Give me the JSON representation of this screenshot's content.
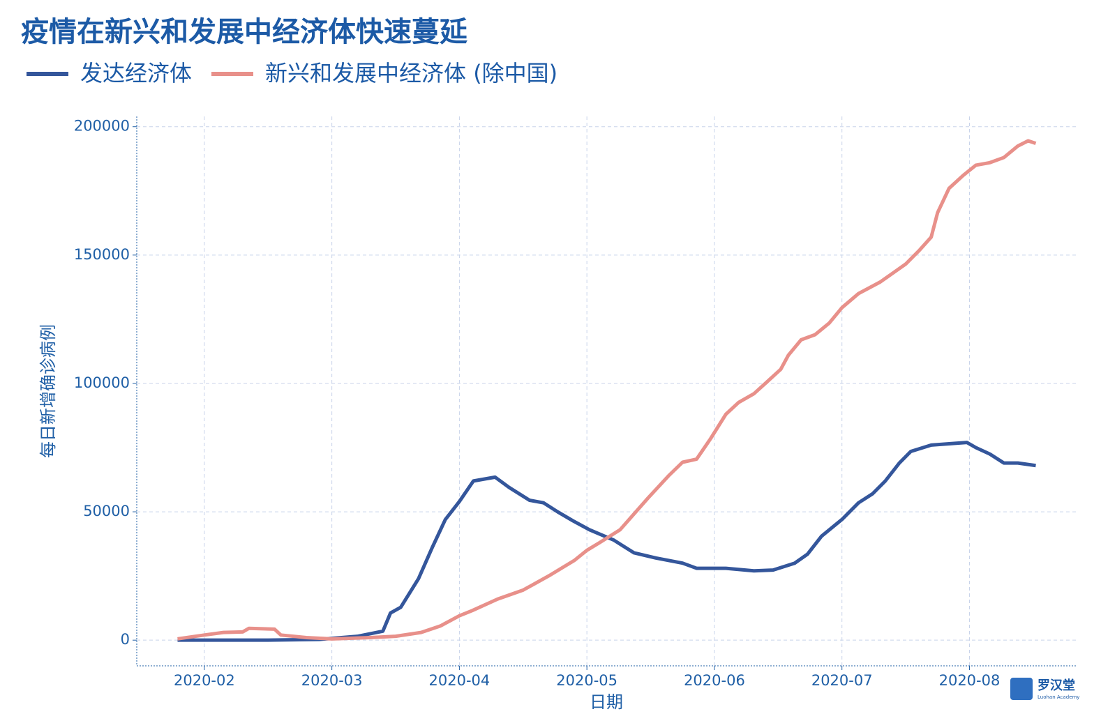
{
  "chart_data": {
    "type": "line",
    "title": "疫情在新兴和发展中经济体快速蔓延",
    "x_label": "日期",
    "y_label": "每日新增确诊病例",
    "xlim": [
      1.47,
      8.84
    ],
    "ylim": [
      -10000,
      204000
    ],
    "xticks": [
      {
        "value": 2,
        "label": "2020-02"
      },
      {
        "value": 3,
        "label": "2020-03"
      },
      {
        "value": 4,
        "label": "2020-04"
      },
      {
        "value": 5,
        "label": "2020-05"
      },
      {
        "value": 6,
        "label": "2020-06"
      },
      {
        "value": 7,
        "label": "2020-07"
      },
      {
        "value": 8,
        "label": "2020-08"
      }
    ],
    "yticks": [
      0,
      50000,
      100000,
      150000,
      200000
    ],
    "grid": true,
    "legend": "top-left",
    "series": [
      {
        "name": "发达经济体",
        "color": "#34569b",
        "x": [
          1.79,
          2.0,
          2.5,
          2.9,
          3.0,
          3.2,
          3.4,
          3.46,
          3.54,
          3.68,
          3.79,
          3.89,
          4.0,
          4.11,
          4.28,
          4.39,
          4.55,
          4.66,
          4.77,
          4.89,
          5.02,
          5.21,
          5.37,
          5.54,
          5.75,
          5.86,
          6.09,
          6.31,
          6.46,
          6.63,
          6.73,
          6.84,
          7.0,
          7.13,
          7.24,
          7.34,
          7.45,
          7.54,
          7.7,
          7.84,
          7.98,
          8.05,
          8.16,
          8.27,
          8.38,
          8.52
        ],
        "values": [
          0,
          0,
          0,
          300,
          700,
          1500,
          3500,
          10600,
          12800,
          24000,
          36400,
          47000,
          54000,
          62000,
          63500,
          59500,
          54500,
          53500,
          50000,
          46500,
          43000,
          39000,
          34000,
          32000,
          30000,
          28000,
          28000,
          27000,
          27300,
          30000,
          33500,
          40500,
          47000,
          53500,
          57000,
          62000,
          69000,
          73500,
          76000,
          76500,
          77000,
          75000,
          72500,
          69000,
          69000,
          68000
        ]
      },
      {
        "name": "新兴和发展中经济体 (除中国)",
        "color": "#e8908a",
        "x": [
          1.79,
          2.0,
          2.15,
          2.3,
          2.35,
          2.55,
          2.6,
          2.8,
          3.0,
          3.3,
          3.5,
          3.7,
          3.85,
          4.0,
          4.1,
          4.3,
          4.5,
          4.7,
          4.9,
          5.0,
          5.1,
          5.26,
          5.48,
          5.64,
          5.75,
          5.86,
          5.97,
          6.09,
          6.19,
          6.31,
          6.41,
          6.52,
          6.58,
          6.68,
          6.79,
          6.9,
          7.0,
          7.13,
          7.3,
          7.4,
          7.5,
          7.61,
          7.7,
          7.75,
          7.84,
          7.95,
          8.05,
          8.16,
          8.27,
          8.38,
          8.46,
          8.52
        ],
        "values": [
          500,
          2000,
          3000,
          3200,
          4600,
          4300,
          2000,
          1000,
          500,
          1000,
          1500,
          3000,
          5500,
          9500,
          11500,
          16000,
          19500,
          25000,
          31000,
          35000,
          38000,
          43000,
          55400,
          64000,
          69300,
          70500,
          78500,
          88000,
          92600,
          96000,
          100500,
          105500,
          111000,
          117000,
          119000,
          123500,
          129500,
          135000,
          139500,
          143000,
          146500,
          152000,
          157000,
          166500,
          176000,
          181000,
          185000,
          186000,
          188000,
          192500,
          194500,
          193500
        ]
      }
    ]
  },
  "logo": {
    "name": "罗汉堂",
    "subtitle": "Luohan Academy"
  }
}
